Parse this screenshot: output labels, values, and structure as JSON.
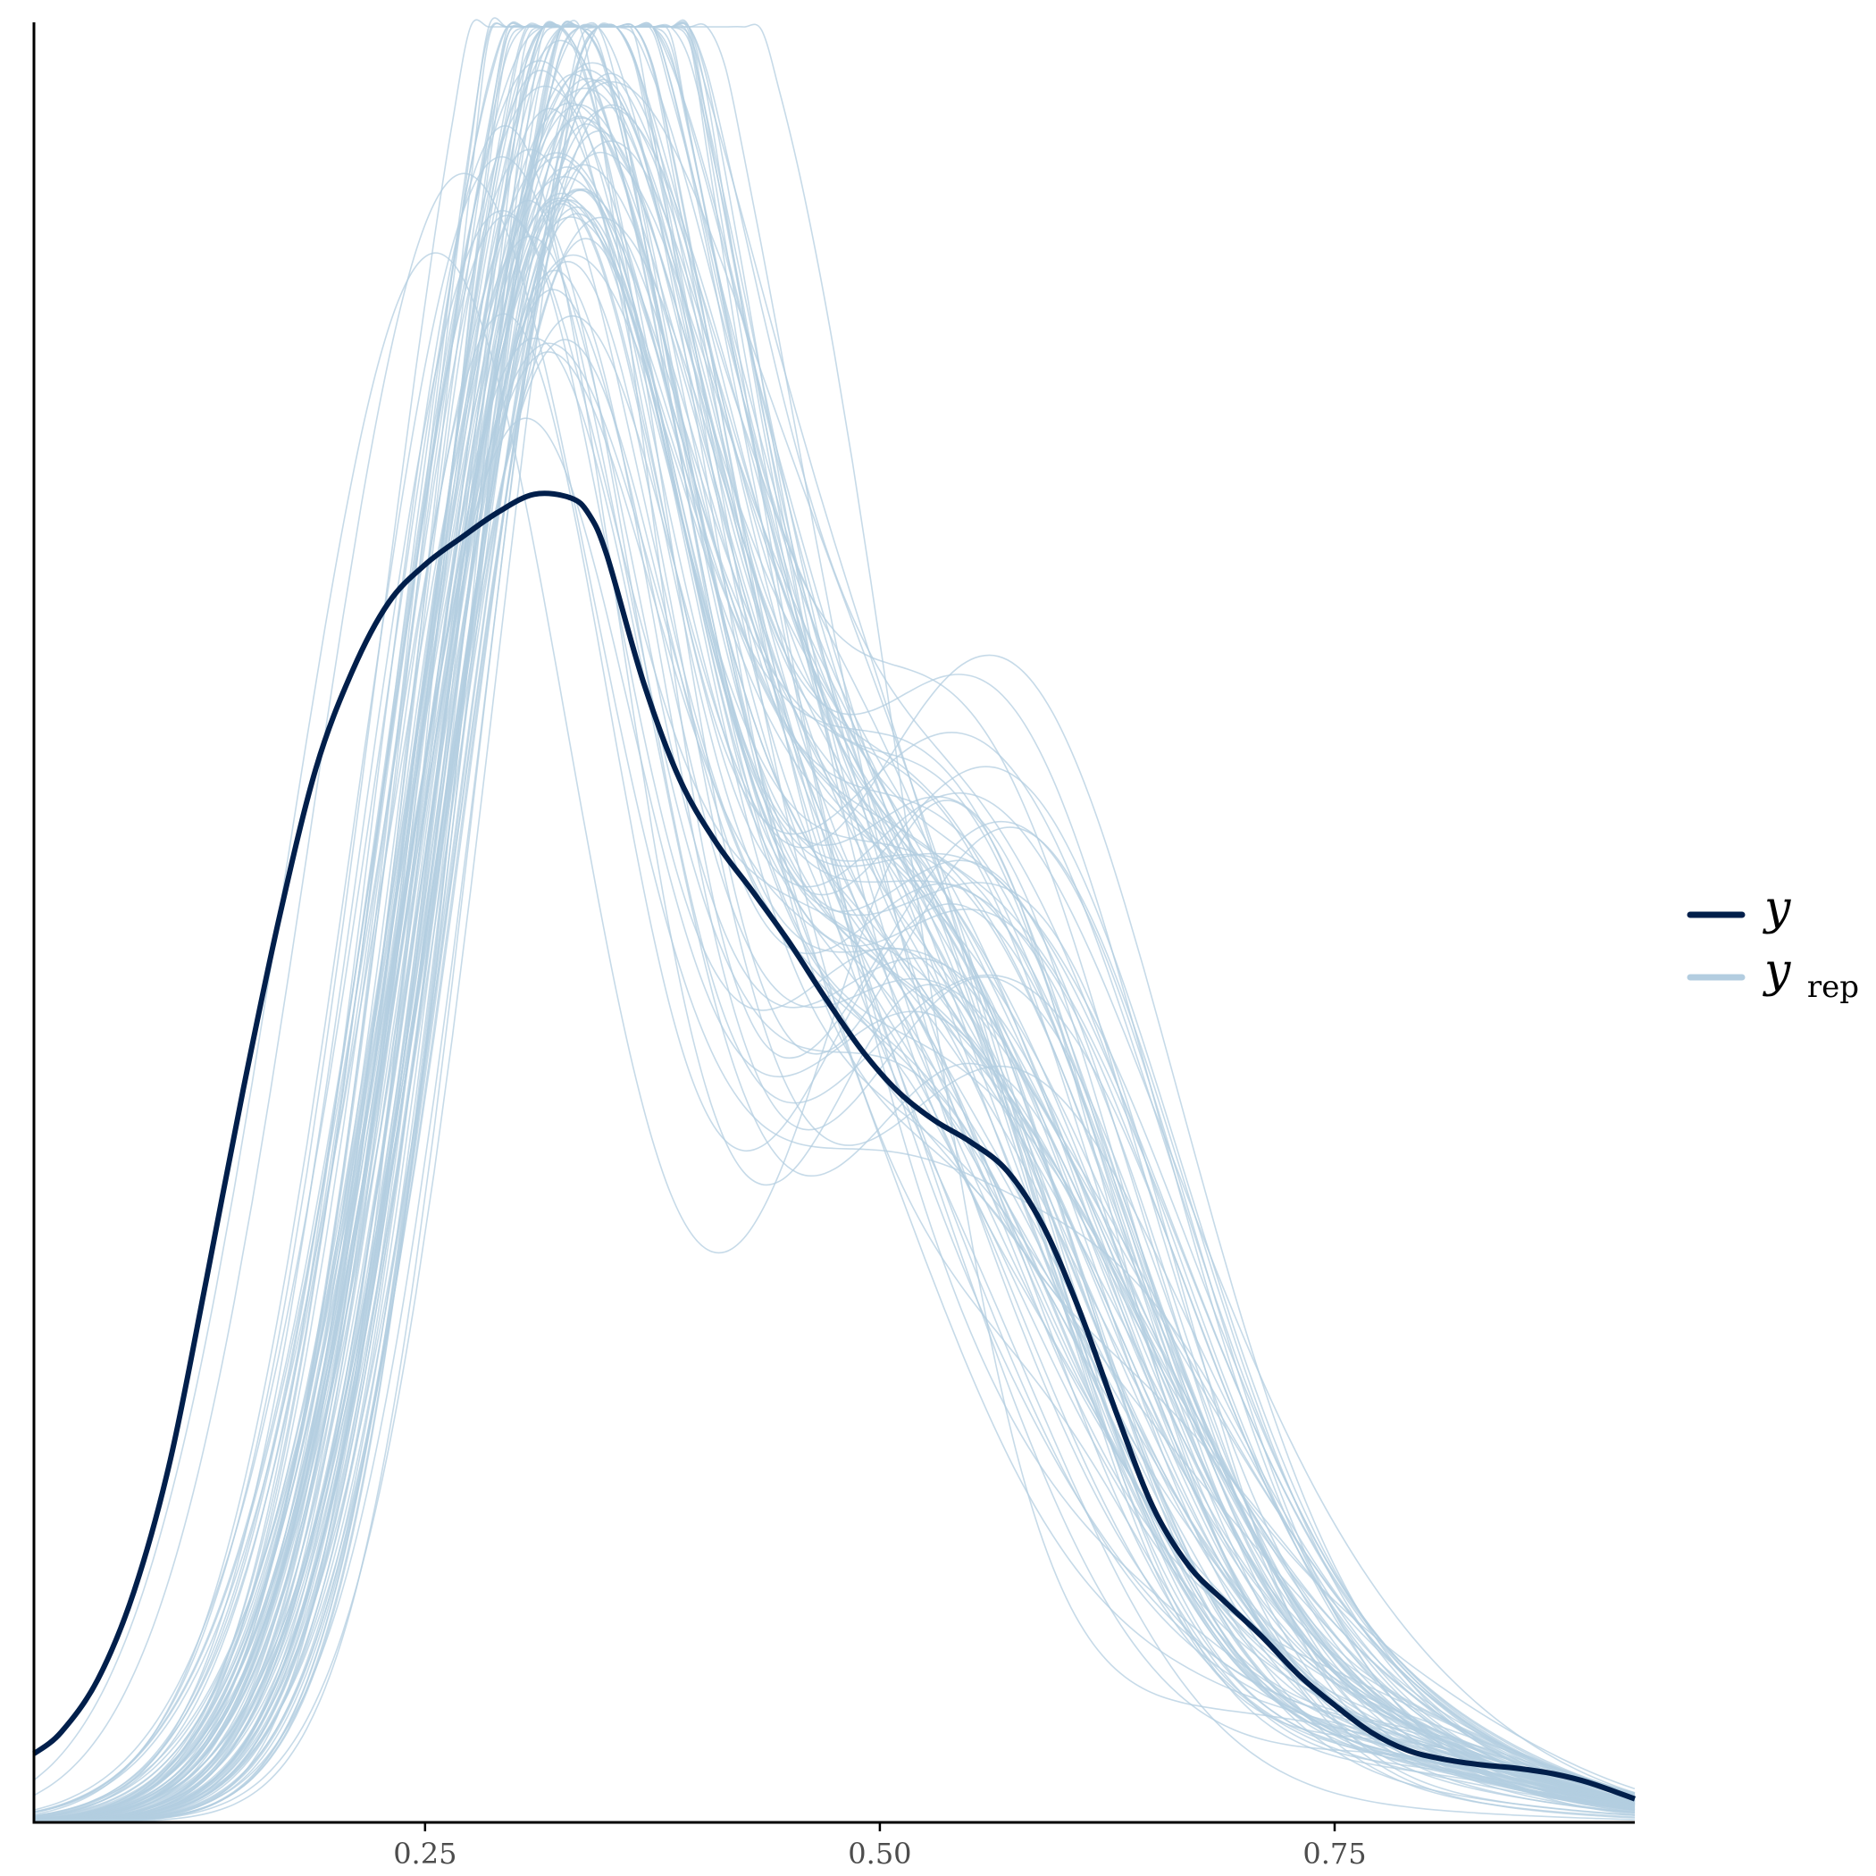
{
  "chart_data": {
    "type": "line",
    "title": "",
    "xlabel": "",
    "ylabel": "",
    "xlim": [
      0.035,
      0.915
    ],
    "ylim": [
      0,
      1
    ],
    "x_ticks": [
      {
        "value": 0.25,
        "label": "0.25"
      },
      {
        "value": 0.5,
        "label": "0.50"
      },
      {
        "value": 0.75,
        "label": "0.75"
      }
    ],
    "y_axis_labels_shown": false,
    "grid": false,
    "legend_position": "right",
    "legend": [
      {
        "key": "y",
        "symbol": "y",
        "subscript": "",
        "color": "#011f4b"
      },
      {
        "key": "yrep",
        "symbol": "y",
        "subscript": "rep",
        "color": "#b3cde0"
      }
    ],
    "colors": {
      "y": "#011f4b",
      "yrep": "#b3cde0",
      "axis": "#000000"
    },
    "series": [
      {
        "name": "y",
        "color": "#011f4b",
        "x": [
          0.035,
          0.05,
          0.07,
          0.09,
          0.11,
          0.13,
          0.15,
          0.17,
          0.19,
          0.21,
          0.23,
          0.25,
          0.27,
          0.29,
          0.31,
          0.33,
          0.34,
          0.35,
          0.37,
          0.39,
          0.41,
          0.43,
          0.45,
          0.47,
          0.49,
          0.51,
          0.53,
          0.55,
          0.57,
          0.59,
          0.61,
          0.63,
          0.65,
          0.67,
          0.69,
          0.71,
          0.73,
          0.75,
          0.77,
          0.79,
          0.81,
          0.83,
          0.85,
          0.87,
          0.89,
          0.915
        ],
        "values": [
          0.038,
          0.05,
          0.079,
          0.128,
          0.201,
          0.302,
          0.406,
          0.502,
          0.584,
          0.638,
          0.676,
          0.697,
          0.712,
          0.726,
          0.736,
          0.734,
          0.725,
          0.702,
          0.632,
          0.578,
          0.543,
          0.516,
          0.488,
          0.457,
          0.428,
          0.405,
          0.389,
          0.377,
          0.361,
          0.33,
          0.283,
          0.227,
          0.175,
          0.142,
          0.122,
          0.103,
          0.082,
          0.065,
          0.05,
          0.04,
          0.035,
          0.032,
          0.03,
          0.027,
          0.022,
          0.013
        ]
      }
    ],
    "replicates": {
      "name": "y_rep",
      "count": 100,
      "color": "#b3cde0",
      "description_values": {
        "peak_x_range": [
          0.28,
          0.36
        ],
        "peak_height_range": [
          0.74,
          1.0
        ]
      }
    }
  }
}
